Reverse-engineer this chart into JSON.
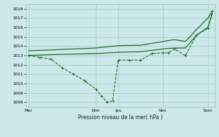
{
  "bg_color": "#cce8ea",
  "grid_color": "#aacccc",
  "line_color": "#1a6b1a",
  "line_color2": "#2d8a2d",
  "xlabel": "Pression niveau de la mer( hPa )",
  "ylim": [
    1007.5,
    1018.5
  ],
  "yticks": [
    1008,
    1009,
    1010,
    1011,
    1012,
    1013,
    1014,
    1015,
    1016,
    1017,
    1018
  ],
  "day_labels": [
    "Mer",
    "",
    "Dim",
    "Jeu",
    "",
    "Ven",
    "",
    "Sam"
  ],
  "day_positions": [
    0,
    1.5,
    3,
    4,
    5,
    6,
    7,
    8
  ],
  "vline_positions": [
    0,
    3,
    4,
    6,
    8
  ],
  "vline_labels": [
    "Mer",
    "Dim",
    "Jeu",
    "Ven",
    "Sam"
  ],
  "xmin": -0.1,
  "xmax": 8.3,
  "line_main_x": [
    0,
    0.5,
    1.0,
    1.5,
    2.0,
    2.5,
    3.0,
    3.25,
    3.5,
    3.75,
    4.0,
    4.5,
    5.0,
    5.5,
    6.0,
    6.25,
    6.5,
    7.0,
    7.5,
    8.0,
    8.2
  ],
  "line_main_y": [
    1013.0,
    1012.8,
    1012.6,
    1011.7,
    1011.0,
    1010.3,
    1009.4,
    1008.7,
    1008.0,
    1008.15,
    1012.5,
    1012.5,
    1012.5,
    1013.2,
    1013.3,
    1013.3,
    1013.7,
    1013.0,
    1015.2,
    1015.9,
    1017.8
  ],
  "line_upper_x": [
    0,
    0.5,
    1.0,
    2.0,
    3.0,
    4.0,
    5.0,
    6.0,
    6.5,
    7.0,
    7.5,
    8.0,
    8.2
  ],
  "line_upper_y": [
    1013.5,
    1013.55,
    1013.6,
    1013.7,
    1013.8,
    1014.05,
    1014.1,
    1014.5,
    1014.7,
    1014.5,
    1015.8,
    1017.0,
    1017.8
  ],
  "line_lower_x": [
    0,
    0.5,
    1.0,
    2.0,
    3.0,
    4.0,
    5.0,
    6.0,
    6.5,
    7.0,
    7.5,
    8.0,
    8.2
  ],
  "line_lower_y": [
    1013.0,
    1013.05,
    1013.1,
    1013.15,
    1013.2,
    1013.35,
    1013.4,
    1013.7,
    1013.8,
    1013.8,
    1015.2,
    1016.0,
    1017.5
  ]
}
